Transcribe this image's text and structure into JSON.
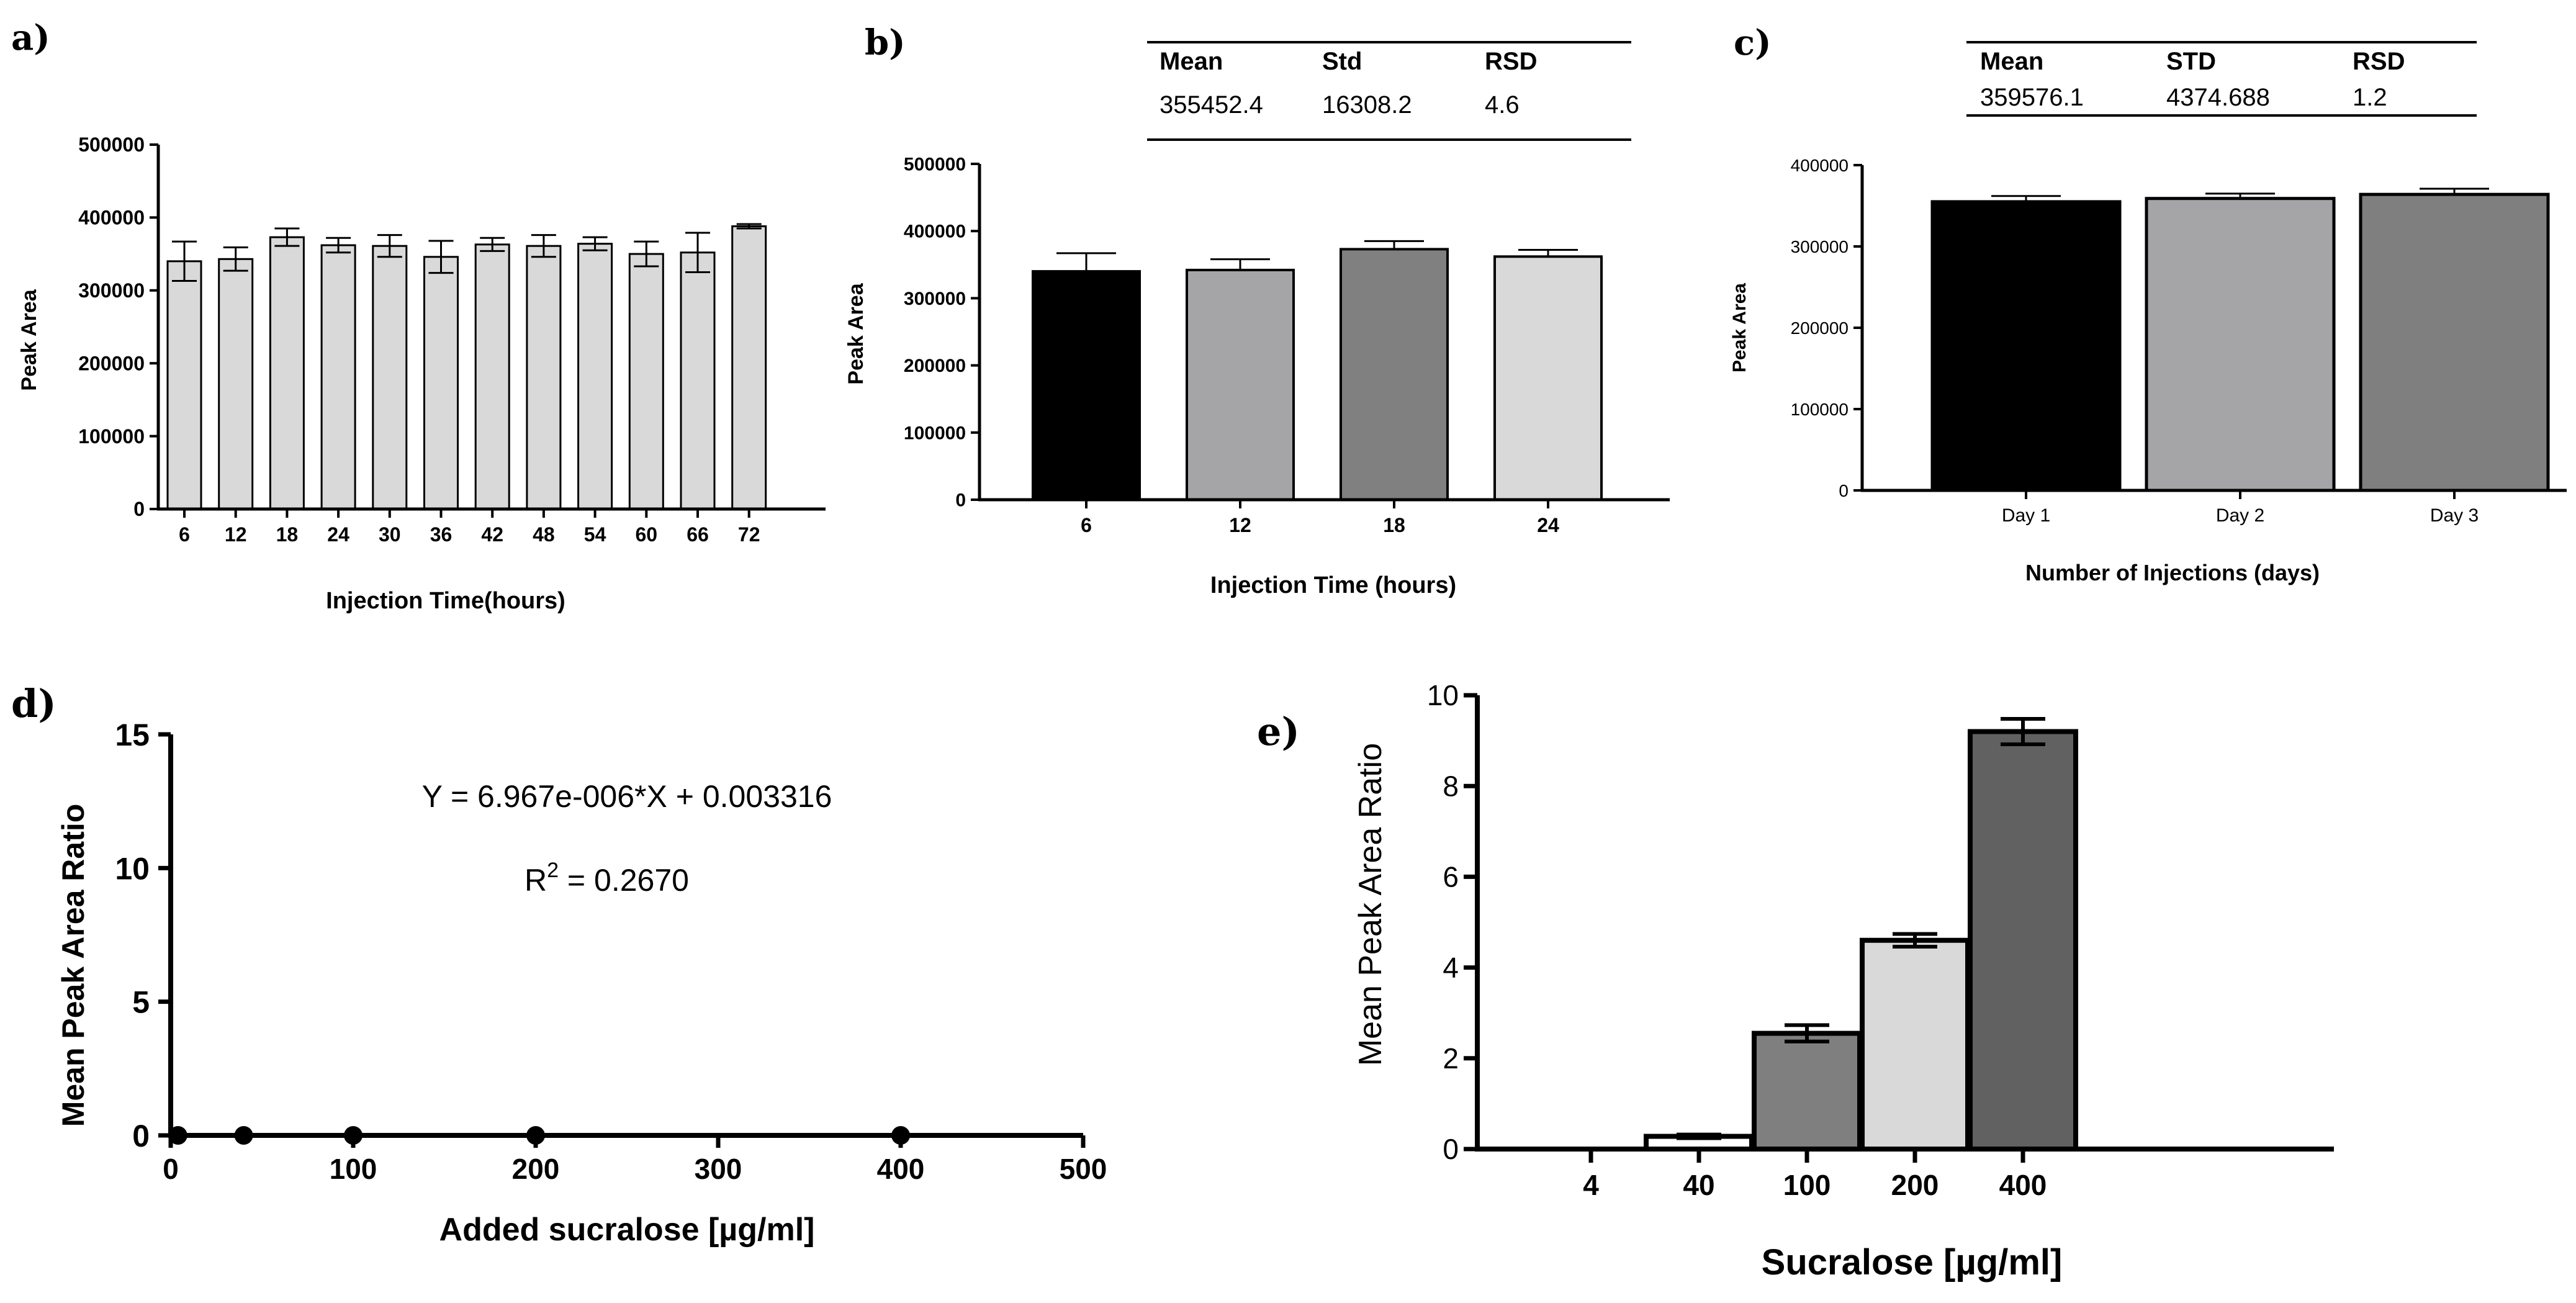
{
  "panels": {
    "a": {
      "label": "a)",
      "chart_data": {
        "type": "bar",
        "categories": [
          "6",
          "12",
          "18",
          "24",
          "30",
          "36",
          "42",
          "48",
          "54",
          "60",
          "66",
          "72"
        ],
        "values": [
          340000,
          343000,
          373000,
          362000,
          361000,
          346000,
          363000,
          361000,
          364000,
          350000,
          352000,
          388000
        ],
        "errors": [
          27000,
          16000,
          12000,
          10000,
          15000,
          22000,
          9000,
          15000,
          9000,
          17000,
          27000,
          3000
        ],
        "color": "#d9d9d9",
        "ylabel": "Peak Area",
        "xlabel": "Injection Time(hours)",
        "ylim": [
          0,
          500000
        ],
        "yticks": [
          "0",
          "100000",
          "200000",
          "300000",
          "400000",
          "500000"
        ]
      }
    },
    "b": {
      "label": "b)",
      "stats": {
        "headers": [
          "Mean",
          "Std",
          "RSD"
        ],
        "values": [
          "355452.4",
          "16308.2",
          "4.6"
        ]
      },
      "chart_data": {
        "type": "bar",
        "categories": [
          "6",
          "12",
          "18",
          "24"
        ],
        "values": [
          340000,
          342000,
          373000,
          362000
        ],
        "errors": [
          27000,
          16000,
          12000,
          10000
        ],
        "colors": [
          "#000000",
          "#a5a5a8",
          "#808080",
          "#d9d9d9"
        ],
        "ylabel": "Peak Area",
        "xlabel": "Injection Time (hours)",
        "ylim": [
          0,
          500000
        ],
        "yticks": [
          "0",
          "100000",
          "200000",
          "300000",
          "400000",
          "500000"
        ]
      }
    },
    "c": {
      "label": "c)",
      "stats": {
        "headers": [
          "Mean",
          "STD",
          "RSD"
        ],
        "values": [
          "359576.1",
          "4374.688",
          "1.2"
        ]
      },
      "chart_data": {
        "type": "bar",
        "categories": [
          "Day 1",
          "Day 2",
          "Day 3"
        ],
        "values": [
          355000,
          359000,
          364000
        ],
        "errors": [
          7000,
          6000,
          7000
        ],
        "colors": [
          "#000000",
          "#a5a5a8",
          "#7f7f7f"
        ],
        "ylabel": "Peak Area",
        "xlabel": "Number of Injections (days)",
        "ylim": [
          0,
          400000
        ],
        "yticks": [
          "0",
          "100000",
          "200000",
          "300000",
          "400000"
        ]
      }
    },
    "d": {
      "label": "d)",
      "chart_data": {
        "type": "scatter",
        "x": [
          4,
          40,
          100,
          200,
          400
        ],
        "y": [
          0,
          0,
          0,
          0,
          0
        ],
        "xlabel": "Added sucralose [µg/ml]",
        "ylabel": "Mean Peak Area Ratio",
        "xlim": [
          0,
          500
        ],
        "ylim": [
          0,
          15
        ],
        "xticks": [
          "0",
          "100",
          "200",
          "300",
          "400",
          "500"
        ],
        "yticks": [
          "0",
          "5",
          "10",
          "15"
        ],
        "equation": "Y = 6.967e-006*X + 0.003316",
        "r2_prefix": "R",
        "r2_sup": "2",
        "r2_value": " = 0.2670"
      }
    },
    "e": {
      "label": "e)",
      "chart_data": {
        "type": "bar",
        "categories": [
          "4",
          "40",
          "100",
          "200",
          "400"
        ],
        "values": [
          0,
          0.28,
          2.55,
          4.6,
          9.2
        ],
        "errors": [
          0,
          0.04,
          0.18,
          0.14,
          0.28
        ],
        "colors": [
          "#ffffff",
          "#ffffff",
          "#7f7f7f",
          "#d9d9d9",
          "#616161"
        ],
        "ylabel": "Mean Peak Area Ratio",
        "xlabel": "Sucralose [µg/ml]",
        "ylim": [
          0,
          10
        ],
        "yticks": [
          "0",
          "2",
          "4",
          "6",
          "8",
          "10"
        ]
      }
    }
  }
}
